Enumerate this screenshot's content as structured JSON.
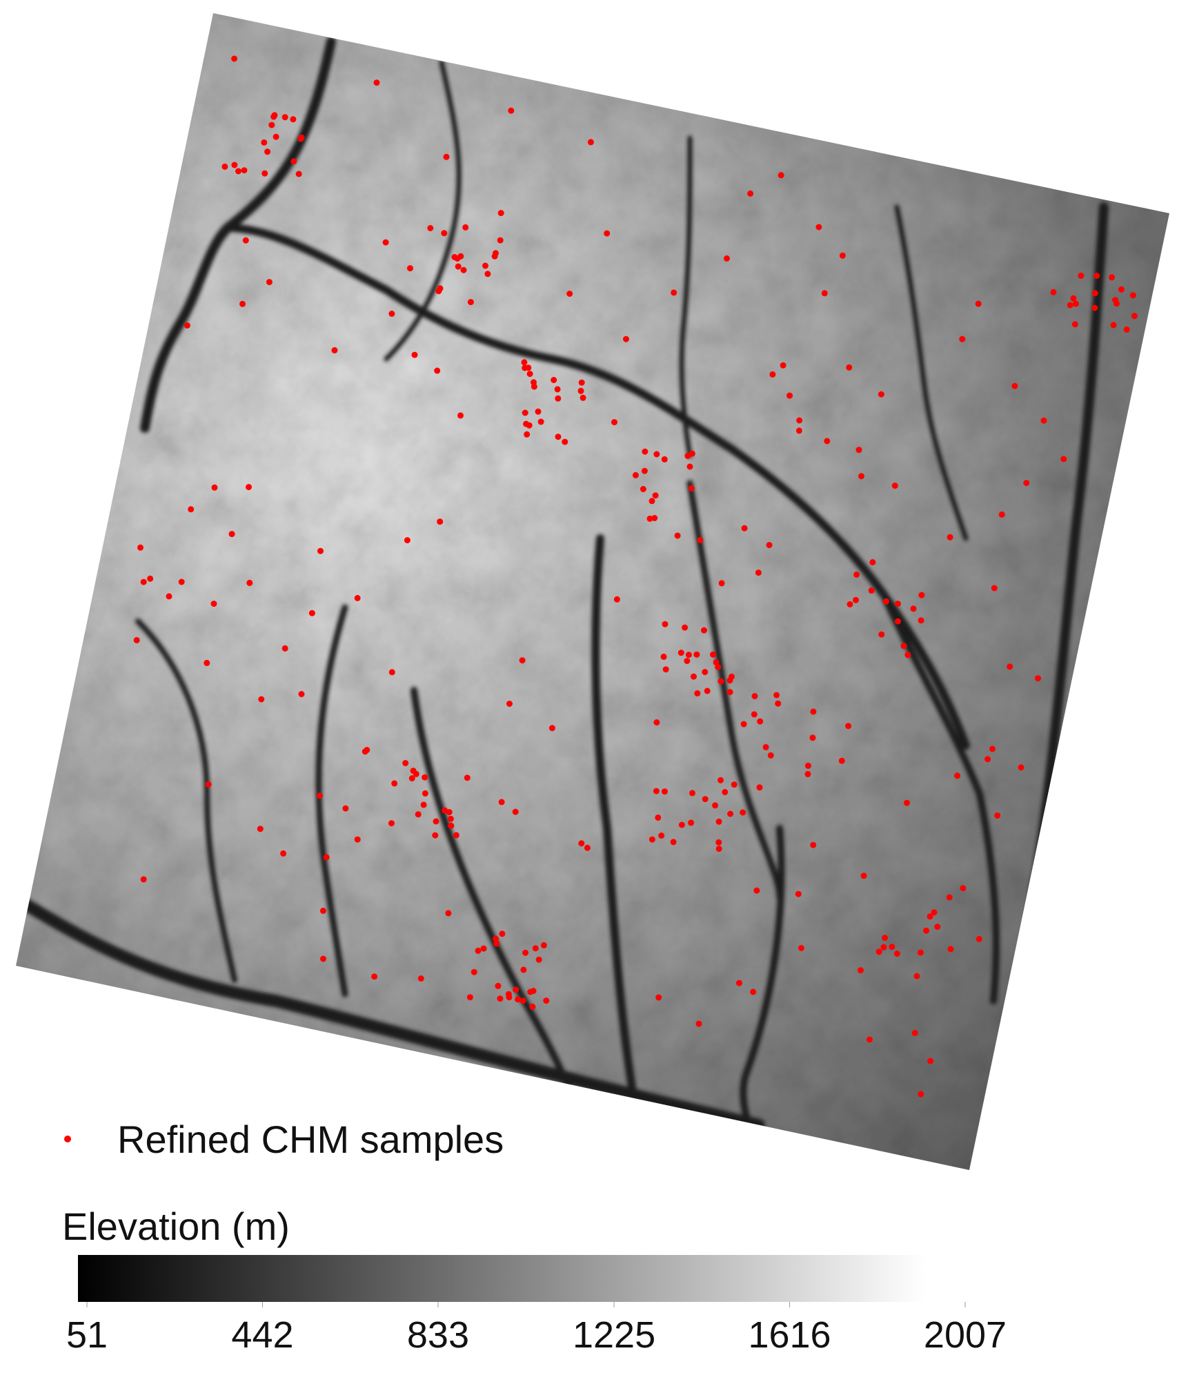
{
  "legend": {
    "label": "Refined CHM samples"
  },
  "colorbar": {
    "title": "Elevation (m)",
    "ticks": [
      51,
      442,
      833,
      1225,
      1616,
      2007
    ]
  }
}
